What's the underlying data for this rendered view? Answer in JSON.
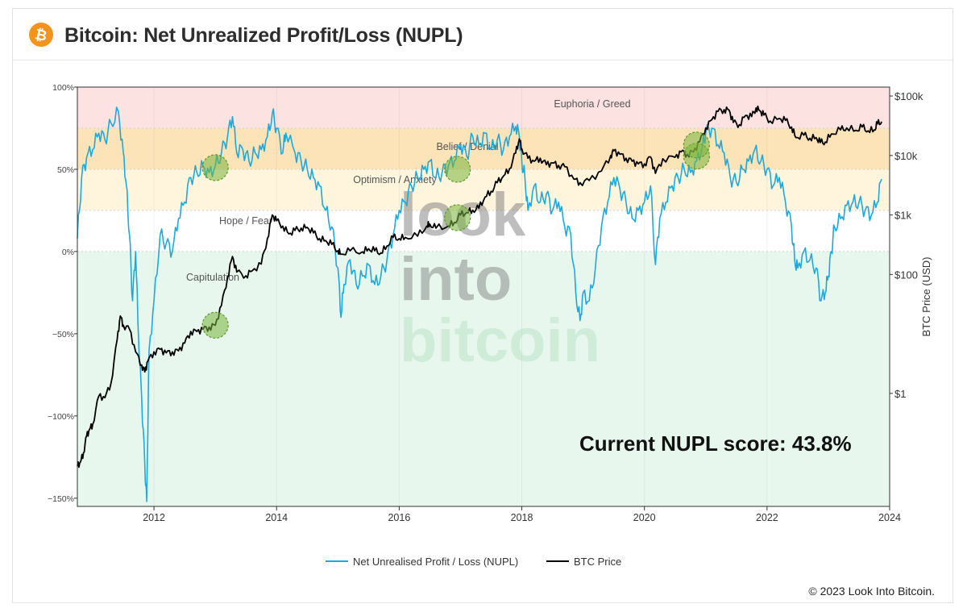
{
  "header": {
    "title": "Bitcoin: Net Unrealized Profit/Loss (NUPL)",
    "icon": "bitcoin-icon",
    "icon_color": "#f7931a"
  },
  "footer": {
    "copyright": "© 2023 Look Into Bitcoin."
  },
  "watermark": [
    "look",
    "into",
    "bitcoin"
  ],
  "annotation": "Current NUPL score: 43.8%",
  "colors": {
    "nupl": "#1ea9dd",
    "price": "#000000",
    "euphoria": "#fde2e2",
    "belief": "#fde3b8",
    "optimism": "#fef5dc",
    "hope": "#ffffff",
    "capitulation": "#e7f7ee",
    "circle_fill": "rgba(120,180,60,0.55)",
    "circle_stroke": "#5d9b2c"
  },
  "chart_data": {
    "type": "line",
    "x_axis": {
      "ticks": [
        "2012",
        "2014",
        "2016",
        "2018",
        "2020",
        "2022",
        "2024"
      ],
      "range": [
        2010.75,
        2024.0
      ]
    },
    "y_left": {
      "ticks": [
        "100%",
        "50%",
        "0%",
        "−50%",
        "−100%",
        "−150%"
      ],
      "range": [
        -155,
        100
      ],
      "unit": "%"
    },
    "y_right": {
      "label": "BTC Price (USD)",
      "ticks": [
        "$100k",
        "$10k",
        "$1k",
        "$100",
        "$1"
      ],
      "scale": "log",
      "range_log10": [
        -1.9,
        5.15
      ]
    },
    "zones": [
      {
        "name": "Euphoria / Greed",
        "from": 75,
        "to": 100
      },
      {
        "name": "Belief / Denial",
        "from": 50,
        "to": 75
      },
      {
        "name": "Optimism / Anxiety",
        "from": 25,
        "to": 50
      },
      {
        "name": "Hope / Fear",
        "from": 0,
        "to": 25
      },
      {
        "name": "Capitulation",
        "from": -155,
        "to": 0
      }
    ],
    "legend": {
      "position": "bottom",
      "items": [
        "Net Unrealised Profit / Loss (NUPL)",
        "BTC Price"
      ]
    },
    "series": [
      {
        "name": "Net Unrealised Profit / Loss (NUPL)",
        "axis": "left",
        "points": [
          [
            2010.75,
            8
          ],
          [
            2010.82,
            45
          ],
          [
            2010.9,
            57
          ],
          [
            2011.0,
            62
          ],
          [
            2011.1,
            72
          ],
          [
            2011.2,
            68
          ],
          [
            2011.3,
            78
          ],
          [
            2011.42,
            85
          ],
          [
            2011.5,
            60
          ],
          [
            2011.55,
            40
          ],
          [
            2011.6,
            10
          ],
          [
            2011.65,
            -30
          ],
          [
            2011.7,
            0
          ],
          [
            2011.75,
            -55
          ],
          [
            2011.8,
            -90
          ],
          [
            2011.85,
            -130
          ],
          [
            2011.88,
            -152
          ],
          [
            2011.92,
            -60
          ],
          [
            2012.0,
            -30
          ],
          [
            2012.1,
            10
          ],
          [
            2012.2,
            5
          ],
          [
            2012.3,
            0
          ],
          [
            2012.4,
            20
          ],
          [
            2012.5,
            30
          ],
          [
            2012.6,
            45
          ],
          [
            2012.7,
            48
          ],
          [
            2012.8,
            52
          ],
          [
            2012.9,
            48
          ],
          [
            2013.0,
            52
          ],
          [
            2013.1,
            60
          ],
          [
            2013.2,
            70
          ],
          [
            2013.28,
            82
          ],
          [
            2013.35,
            60
          ],
          [
            2013.45,
            62
          ],
          [
            2013.55,
            55
          ],
          [
            2013.65,
            60
          ],
          [
            2013.75,
            62
          ],
          [
            2013.85,
            70
          ],
          [
            2013.93,
            84
          ],
          [
            2014.0,
            75
          ],
          [
            2014.1,
            60
          ],
          [
            2014.15,
            72
          ],
          [
            2014.3,
            60
          ],
          [
            2014.4,
            55
          ],
          [
            2014.5,
            50
          ],
          [
            2014.6,
            45
          ],
          [
            2014.7,
            40
          ],
          [
            2014.8,
            25
          ],
          [
            2014.9,
            15
          ],
          [
            2015.0,
            -10
          ],
          [
            2015.05,
            -40
          ],
          [
            2015.1,
            -20
          ],
          [
            2015.2,
            -5
          ],
          [
            2015.3,
            -20
          ],
          [
            2015.4,
            -15
          ],
          [
            2015.5,
            -8
          ],
          [
            2015.6,
            -20
          ],
          [
            2015.7,
            -15
          ],
          [
            2015.8,
            -5
          ],
          [
            2015.9,
            10
          ],
          [
            2016.0,
            25
          ],
          [
            2016.1,
            30
          ],
          [
            2016.2,
            40
          ],
          [
            2016.3,
            45
          ],
          [
            2016.4,
            50
          ],
          [
            2016.5,
            55
          ],
          [
            2016.6,
            45
          ],
          [
            2016.7,
            48
          ],
          [
            2016.8,
            52
          ],
          [
            2016.9,
            55
          ],
          [
            2017.0,
            65
          ],
          [
            2017.1,
            58
          ],
          [
            2017.2,
            70
          ],
          [
            2017.3,
            65
          ],
          [
            2017.4,
            72
          ],
          [
            2017.5,
            62
          ],
          [
            2017.6,
            68
          ],
          [
            2017.7,
            62
          ],
          [
            2017.8,
            70
          ],
          [
            2017.9,
            76
          ],
          [
            2017.96,
            70
          ],
          [
            2018.0,
            55
          ],
          [
            2018.05,
            45
          ],
          [
            2018.1,
            25
          ],
          [
            2018.2,
            40
          ],
          [
            2018.3,
            30
          ],
          [
            2018.4,
            35
          ],
          [
            2018.5,
            25
          ],
          [
            2018.6,
            30
          ],
          [
            2018.7,
            15
          ],
          [
            2018.8,
            10
          ],
          [
            2018.88,
            -25
          ],
          [
            2018.95,
            -42
          ],
          [
            2019.0,
            -25
          ],
          [
            2019.1,
            -30
          ],
          [
            2019.2,
            -10
          ],
          [
            2019.3,
            15
          ],
          [
            2019.4,
            30
          ],
          [
            2019.5,
            45
          ],
          [
            2019.6,
            38
          ],
          [
            2019.7,
            30
          ],
          [
            2019.8,
            20
          ],
          [
            2019.9,
            25
          ],
          [
            2020.0,
            30
          ],
          [
            2020.1,
            40
          ],
          [
            2020.18,
            -8
          ],
          [
            2020.25,
            20
          ],
          [
            2020.35,
            30
          ],
          [
            2020.45,
            40
          ],
          [
            2020.55,
            45
          ],
          [
            2020.65,
            50
          ],
          [
            2020.75,
            48
          ],
          [
            2020.85,
            55
          ],
          [
            2020.95,
            65
          ],
          [
            2021.0,
            72
          ],
          [
            2021.1,
            75
          ],
          [
            2021.2,
            65
          ],
          [
            2021.3,
            60
          ],
          [
            2021.4,
            45
          ],
          [
            2021.5,
            42
          ],
          [
            2021.6,
            50
          ],
          [
            2021.7,
            55
          ],
          [
            2021.8,
            62
          ],
          [
            2021.9,
            55
          ],
          [
            2022.0,
            50
          ],
          [
            2022.1,
            40
          ],
          [
            2022.2,
            45
          ],
          [
            2022.3,
            30
          ],
          [
            2022.4,
            15
          ],
          [
            2022.45,
            -5
          ],
          [
            2022.5,
            -10
          ],
          [
            2022.6,
            0
          ],
          [
            2022.7,
            -5
          ],
          [
            2022.8,
            -10
          ],
          [
            2022.88,
            -30
          ],
          [
            2022.95,
            -25
          ],
          [
            2023.0,
            -15
          ],
          [
            2023.05,
            0
          ],
          [
            2023.1,
            15
          ],
          [
            2023.2,
            20
          ],
          [
            2023.3,
            28
          ],
          [
            2023.4,
            30
          ],
          [
            2023.5,
            30
          ],
          [
            2023.6,
            25
          ],
          [
            2023.7,
            22
          ],
          [
            2023.8,
            30
          ],
          [
            2023.87,
            44
          ]
        ]
      },
      {
        "name": "BTC Price",
        "axis": "right",
        "points": [
          [
            2010.75,
            0.06
          ],
          [
            2010.8,
            0.07
          ],
          [
            2010.85,
            0.1
          ],
          [
            2010.9,
            0.19
          ],
          [
            2010.95,
            0.25
          ],
          [
            2011.0,
            0.3
          ],
          [
            2011.1,
            0.9
          ],
          [
            2011.2,
            0.85
          ],
          [
            2011.3,
            1.5
          ],
          [
            2011.4,
            8
          ],
          [
            2011.45,
            20
          ],
          [
            2011.5,
            14
          ],
          [
            2011.6,
            12
          ],
          [
            2011.7,
            5
          ],
          [
            2011.8,
            3
          ],
          [
            2011.85,
            2.3
          ],
          [
            2011.9,
            3.5
          ],
          [
            2012.0,
            5
          ],
          [
            2012.1,
            5.5
          ],
          [
            2012.2,
            4.8
          ],
          [
            2012.3,
            5
          ],
          [
            2012.4,
            5.2
          ],
          [
            2012.5,
            7
          ],
          [
            2012.6,
            11
          ],
          [
            2012.7,
            11
          ],
          [
            2012.8,
            12
          ],
          [
            2012.9,
            13
          ],
          [
            2013.0,
            14
          ],
          [
            2013.1,
            30
          ],
          [
            2013.2,
            90
          ],
          [
            2013.28,
            200
          ],
          [
            2013.35,
            110
          ],
          [
            2013.5,
            95
          ],
          [
            2013.6,
            115
          ],
          [
            2013.75,
            150
          ],
          [
            2013.85,
            400
          ],
          [
            2013.93,
            1000
          ],
          [
            2014.0,
            800
          ],
          [
            2014.1,
            650
          ],
          [
            2014.2,
            480
          ],
          [
            2014.3,
            550
          ],
          [
            2014.4,
            600
          ],
          [
            2014.5,
            620
          ],
          [
            2014.6,
            500
          ],
          [
            2014.7,
            400
          ],
          [
            2014.8,
            370
          ],
          [
            2014.9,
            320
          ],
          [
            2015.0,
            250
          ],
          [
            2015.05,
            220
          ],
          [
            2015.2,
            250
          ],
          [
            2015.4,
            240
          ],
          [
            2015.5,
            270
          ],
          [
            2015.6,
            250
          ],
          [
            2015.7,
            230
          ],
          [
            2015.8,
            300
          ],
          [
            2015.9,
            420
          ],
          [
            2016.0,
            400
          ],
          [
            2016.1,
            420
          ],
          [
            2016.3,
            440
          ],
          [
            2016.45,
            650
          ],
          [
            2016.5,
            700
          ],
          [
            2016.6,
            600
          ],
          [
            2016.8,
            650
          ],
          [
            2016.9,
            750
          ],
          [
            2017.0,
            1000
          ],
          [
            2017.1,
            1100
          ],
          [
            2017.2,
            1200
          ],
          [
            2017.3,
            1300
          ],
          [
            2017.4,
            2000
          ],
          [
            2017.5,
            2500
          ],
          [
            2017.6,
            3500
          ],
          [
            2017.7,
            4500
          ],
          [
            2017.8,
            6000
          ],
          [
            2017.9,
            11000
          ],
          [
            2017.96,
            19000
          ],
          [
            2018.0,
            13000
          ],
          [
            2018.1,
            9000
          ],
          [
            2018.2,
            8000
          ],
          [
            2018.3,
            9000
          ],
          [
            2018.4,
            7000
          ],
          [
            2018.5,
            7500
          ],
          [
            2018.6,
            6800
          ],
          [
            2018.7,
            6500
          ],
          [
            2018.85,
            4000
          ],
          [
            2018.95,
            3500
          ],
          [
            2019.1,
            3800
          ],
          [
            2019.3,
            5500
          ],
          [
            2019.45,
            10000
          ],
          [
            2019.5,
            12000
          ],
          [
            2019.6,
            10500
          ],
          [
            2019.7,
            9000
          ],
          [
            2019.8,
            8000
          ],
          [
            2019.9,
            7200
          ],
          [
            2020.0,
            7200
          ],
          [
            2020.1,
            9500
          ],
          [
            2020.18,
            5000
          ],
          [
            2020.3,
            8800
          ],
          [
            2020.5,
            9300
          ],
          [
            2020.6,
            11500
          ],
          [
            2020.7,
            10600
          ],
          [
            2020.8,
            11500
          ],
          [
            2020.9,
            17000
          ],
          [
            2021.0,
            29000
          ],
          [
            2021.1,
            40000
          ],
          [
            2021.2,
            55000
          ],
          [
            2021.3,
            59000
          ],
          [
            2021.38,
            58000
          ],
          [
            2021.45,
            36000
          ],
          [
            2021.55,
            33000
          ],
          [
            2021.65,
            47000
          ],
          [
            2021.75,
            45000
          ],
          [
            2021.82,
            63000
          ],
          [
            2021.88,
            57000
          ],
          [
            2021.95,
            48000
          ],
          [
            2022.05,
            38000
          ],
          [
            2022.2,
            42000
          ],
          [
            2022.3,
            39000
          ],
          [
            2022.4,
            30000
          ],
          [
            2022.47,
            20000
          ],
          [
            2022.6,
            22000
          ],
          [
            2022.7,
            19500
          ],
          [
            2022.8,
            20000
          ],
          [
            2022.87,
            16500
          ],
          [
            2022.95,
            16800
          ],
          [
            2023.05,
            23000
          ],
          [
            2023.2,
            27000
          ],
          [
            2023.3,
            29000
          ],
          [
            2023.45,
            26500
          ],
          [
            2023.55,
            30000
          ],
          [
            2023.65,
            26000
          ],
          [
            2023.75,
            27000
          ],
          [
            2023.8,
            34000
          ],
          [
            2023.87,
            37000
          ]
        ]
      }
    ],
    "highlight_circles": [
      {
        "x": 2013.0,
        "axis": "left",
        "y": 51
      },
      {
        "x": 2013.0,
        "axis": "right",
        "y": 14
      },
      {
        "x": 2016.95,
        "axis": "left",
        "y": 50
      },
      {
        "x": 2016.95,
        "axis": "right",
        "y": 900
      },
      {
        "x": 2020.85,
        "axis": "left",
        "y": 58
      },
      {
        "x": 2020.85,
        "axis": "right",
        "y": 15000
      }
    ]
  }
}
